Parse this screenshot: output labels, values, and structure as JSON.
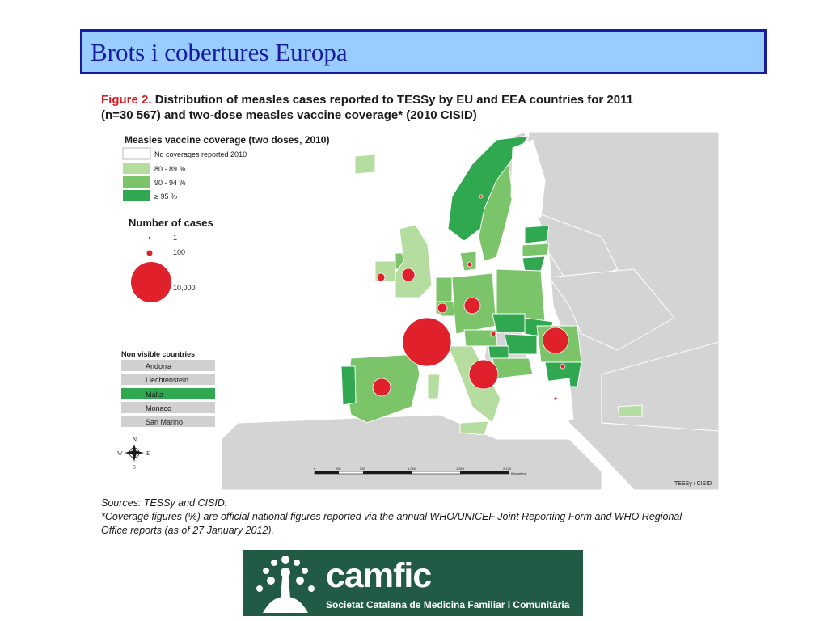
{
  "slide_title": "Brots i cobertures Europa",
  "figure": {
    "number": "Figure 2.",
    "caption_line1": "Distribution of measles cases reported to TESSy by EU and EEA countries for 2011",
    "caption_line2": "(n=30 567) and two-dose measles vaccine coverage* (2010 CISID)"
  },
  "map": {
    "legend_coverage_title": "Measles vaccine coverage (two doses, 2010)",
    "coverage_classes": [
      {
        "label": "No coverages reported 2010",
        "color": "#ffffff"
      },
      {
        "label": "80 - 89 %",
        "color": "#b5dd9f"
      },
      {
        "label": "90 - 94 %",
        "color": "#7cc469"
      },
      {
        "label": "≥ 95 %",
        "color": "#2fa84f"
      }
    ],
    "legend_cases_title": "Number of cases",
    "case_sizes": [
      {
        "label": "1",
        "value": 1
      },
      {
        "label": "100",
        "value": 100
      },
      {
        "label": "10,000",
        "value": 10000
      }
    ],
    "non_visible_title": "Non visible countries",
    "non_visible": [
      {
        "label": "Andorra",
        "color": "#d0d0d0"
      },
      {
        "label": "Liechtenstein",
        "color": "#d0d0d0"
      },
      {
        "label": "Malta",
        "color": "#2fa84f"
      },
      {
        "label": "Monaco",
        "color": "#d0d0d0"
      },
      {
        "label": "San Marino",
        "color": "#d0d0d0"
      }
    ],
    "compass": {
      "n": "N",
      "s": "S",
      "e": "E",
      "w": "W"
    },
    "scale_labels": [
      "0",
      "265",
      "530",
      "1,060",
      "1,590",
      "2,120"
    ],
    "scale_unit": "Kilometers",
    "credit": "TESSy / CISID",
    "colors": {
      "sea": "#ffffff",
      "non_eu": "#d4d4d4",
      "border": "#ffffff",
      "case_bubble": "#e0202a"
    }
  },
  "sources": {
    "line1": "Sources: TESSy and CISID.",
    "line2": "*Coverage figures (%) are official national figures reported via the annual WHO/UNICEF Joint Reporting Form and WHO Regional",
    "line3": "Office reports (as of 27 January 2012)."
  },
  "logo": {
    "name": "camfic",
    "subtitle": "Societat Catalana de Medicina Familiar i Comunitària",
    "bg": "#215a45"
  }
}
